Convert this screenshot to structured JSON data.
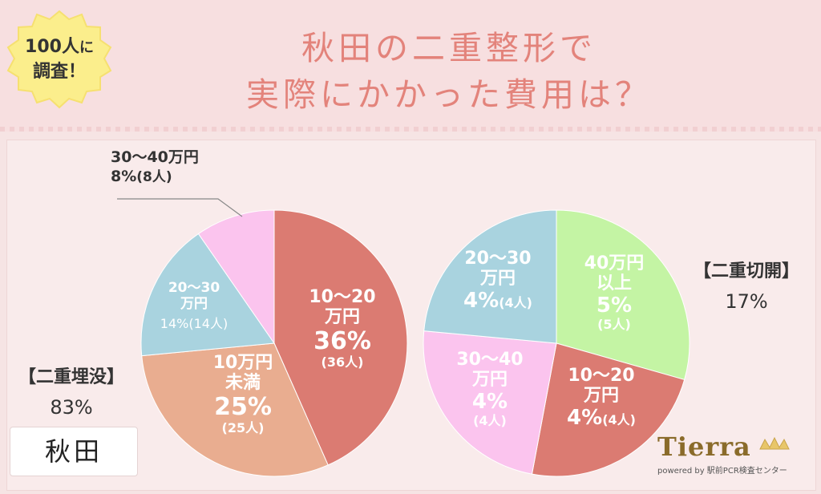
{
  "title": {
    "line1": "秋田の二重整形で",
    "line2": "実際にかかった費用は？"
  },
  "badge": {
    "line1_num": "100人",
    "line1_suffix": "に",
    "line2": "調査！"
  },
  "location_label": "秋田",
  "logo": {
    "brand": "Tierra",
    "sub": "powered by 駅前PCR検査センター"
  },
  "groups": {
    "left": {
      "name": "【二重埋没】",
      "percent": "83%"
    },
    "right": {
      "name": "【二重切開】",
      "percent": "17%"
    }
  },
  "labels": {
    "left": [
      {
        "l1": "10〜20",
        "l2": "万円",
        "pct": "36%",
        "cnt": "(36人)"
      },
      {
        "l1": "10万円",
        "l2": "未満",
        "pct": "25%",
        "cnt": "(25人)"
      },
      {
        "l1": "20〜30",
        "l2": "万円",
        "pct": "14%",
        "cnt": "(14人)"
      },
      {
        "l1": "30〜40万円",
        "pct": "8%",
        "cnt": "(8人)"
      }
    ],
    "right": [
      {
        "l1": "40万円",
        "l2": "以上",
        "pct": "5%",
        "cnt": "(5人)"
      },
      {
        "l1": "10〜20",
        "l2": "万円",
        "pct": "4%",
        "cnt": "(4人)"
      },
      {
        "l1": "30〜40",
        "l2": "万円",
        "pct": "4%",
        "cnt": "(4人)"
      },
      {
        "l1": "20〜30",
        "l2": "万円",
        "pct": "4%",
        "cnt": "(4人)"
      }
    ]
  },
  "chart_data": [
    {
      "type": "pie",
      "title": "【二重埋没】",
      "total_percent": "83%",
      "categories": [
        "10〜20万円",
        "10万円未満",
        "20〜30万円",
        "30〜40万円"
      ],
      "values": [
        36,
        25,
        14,
        8
      ],
      "colors": [
        "#db7b72",
        "#e9ad90",
        "#a9d3df",
        "#fbc4ee"
      ]
    },
    {
      "type": "pie",
      "title": "【二重切開】",
      "total_percent": "17%",
      "categories": [
        "40万円以上",
        "10〜20万円",
        "30〜40万円",
        "20〜30万円"
      ],
      "values": [
        5,
        4,
        4,
        4
      ],
      "colors": [
        "#c4f4a4",
        "#db7b72",
        "#fbc4ee",
        "#a9d3df"
      ]
    }
  ]
}
